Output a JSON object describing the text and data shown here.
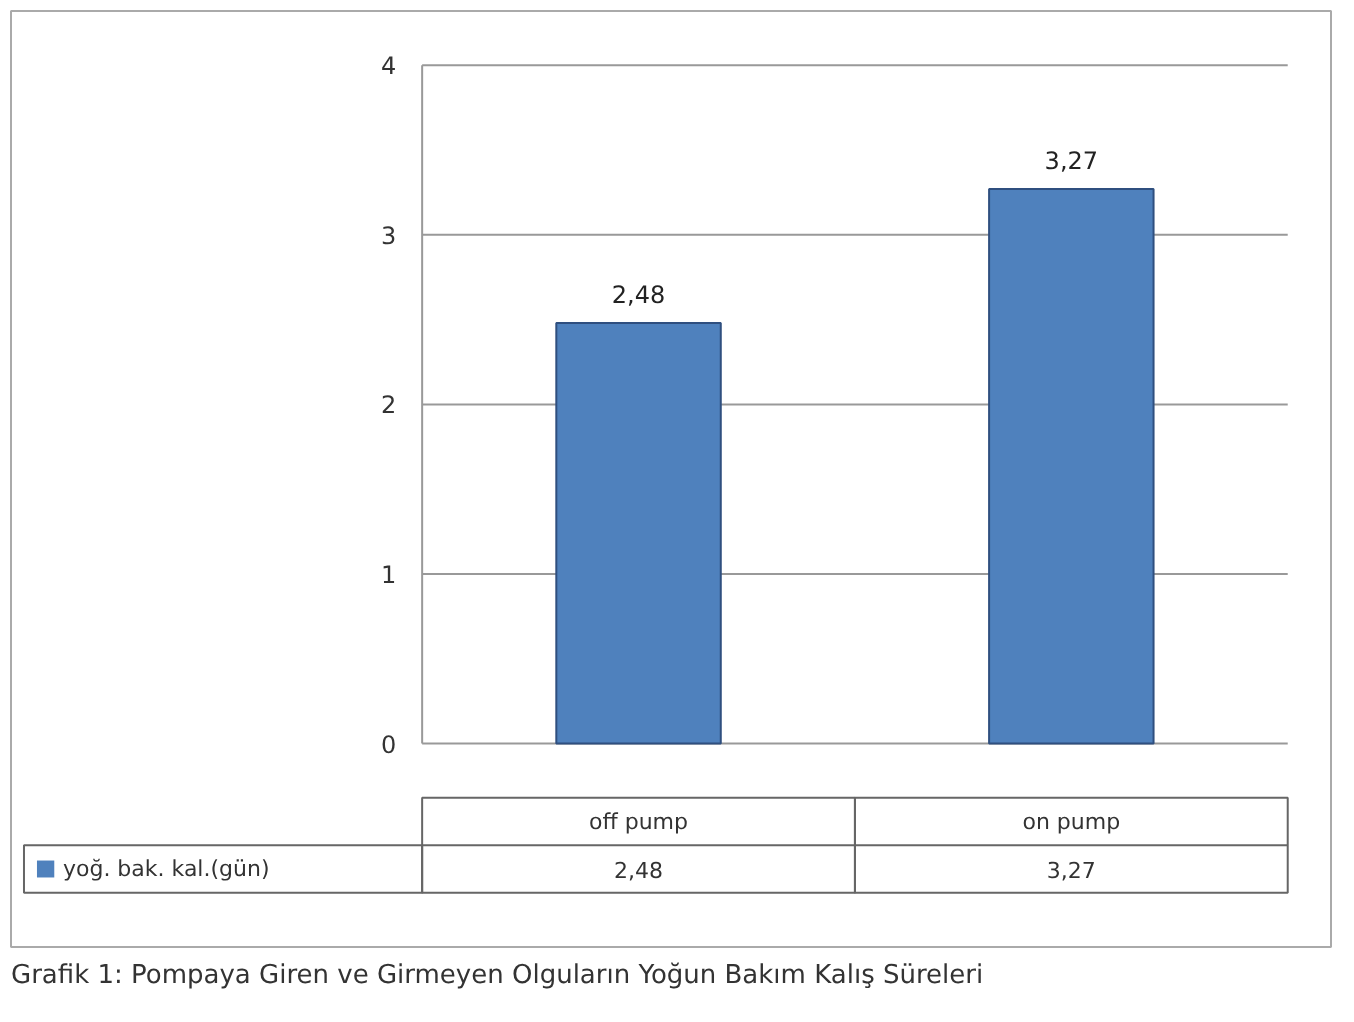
{
  "chart_data": {
    "type": "bar",
    "annotations": [
      "Grafik 1: Pompaya Giren ve Girmeyen Olguların Yoğun Bakım Kalış Süreleri"
    ],
    "categories": [
      "off pump",
      "on pump"
    ],
    "series": [
      {
        "name": "yoğ. bak. kal.(gün)",
        "color": "#4f81bd",
        "values": [
          2.48,
          3.27
        ]
      }
    ],
    "value_labels": [
      "2,48",
      "3,27"
    ],
    "ylim": [
      0,
      4
    ],
    "yticks": [
      0,
      1,
      2,
      3,
      4
    ],
    "grid": "y",
    "legend": "bottom"
  }
}
